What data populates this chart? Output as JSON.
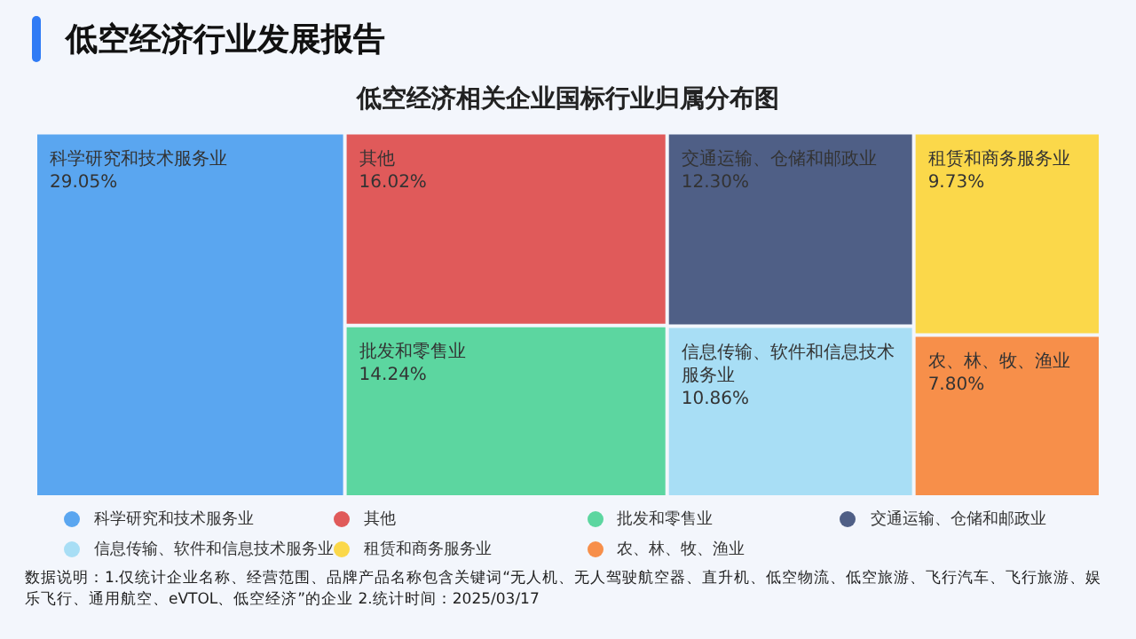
{
  "chart_data": {
    "type": "other",
    "title": "低空经济行业发展报告",
    "subtitle": "低空经济相关企业国标行业归属分布图",
    "categories": [
      "科学研究和技术服务业",
      "其他",
      "批发和零售业",
      "交通运输、仓储和邮政业",
      "信息传输、软件和信息技术服务业",
      "租赁和商务服务业",
      "农、林、牧、渔业"
    ],
    "values": [
      29.05,
      16.02,
      14.24,
      12.3,
      10.86,
      9.73,
      7.8
    ],
    "value_labels": [
      "29.05%",
      "16.02%",
      "14.24%",
      "12.30%",
      "10.86%",
      "9.73%",
      "7.80%"
    ],
    "colors": [
      "#5aa6f0",
      "#e05a5a",
      "#5cd6a0",
      "#4f5f86",
      "#a8def5",
      "#fbd84a",
      "#f78f4a"
    ],
    "annotations": [
      "数据说明：1.仅统计企业名称、经营范围、品牌产品名称包含关键词“无人机、无人驾驶航空器、直升机、低空物流、低空旅游、飞行汽车、飞行旅游、娱乐飞行、通用航空、eVTOL、低空经济”的企业  2.统计时间：2025/03/17"
    ]
  }
}
